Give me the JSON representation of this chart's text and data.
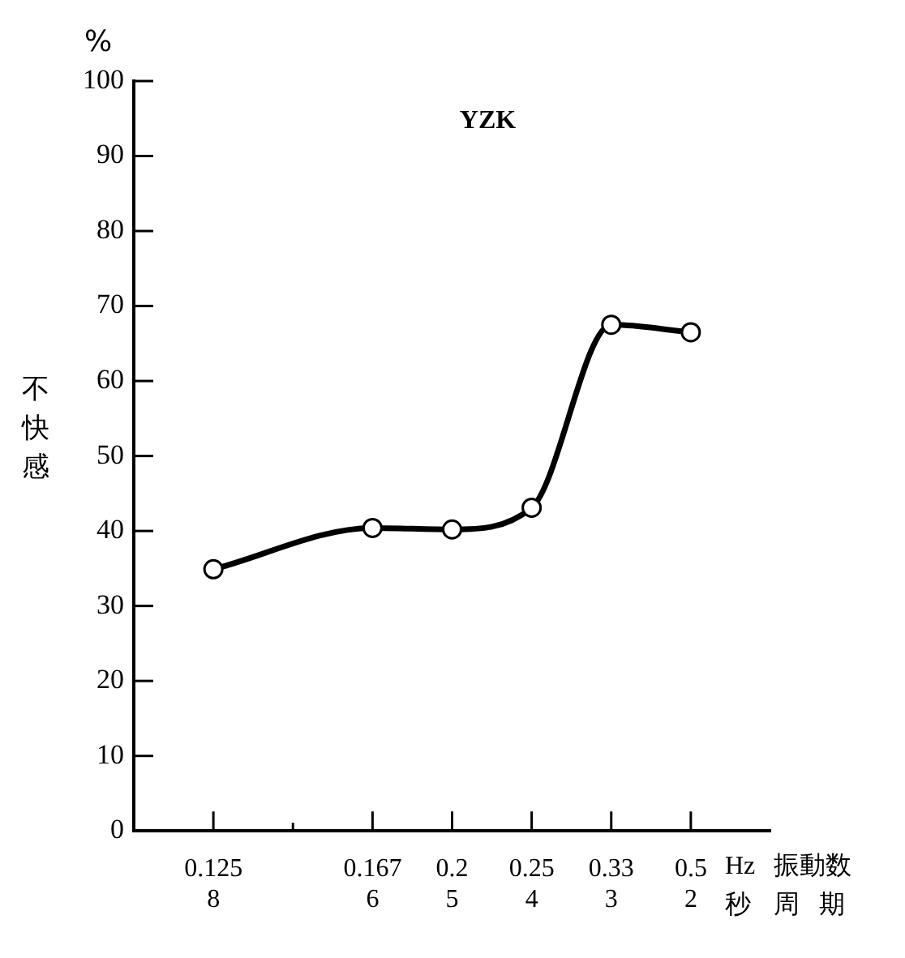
{
  "chart_data": {
    "type": "line",
    "title": "YZK",
    "xlabel": "振動数",
    "ylabel": "不快感",
    "annotations": [
      "%",
      "Hz",
      "秒",
      "周期"
    ],
    "categories": [
      "0.125\n8",
      null,
      "0.167\n6",
      "0.2\n5",
      "0.25\n4",
      "0.33\n3",
      "0.5\n2"
    ],
    "series": [
      {
        "color": "#000000",
        "values": [
          34.9,
          null,
          40.4,
          40.2,
          43.1,
          67.5,
          66.5
        ]
      }
    ],
    "ylim": [
      0,
      100
    ],
    "yticks": [
      0,
      10,
      20,
      30,
      40,
      50,
      60,
      70,
      80,
      90,
      100
    ],
    "grid": false,
    "legend": false,
    "marker": "circle",
    "line_style": "solid"
  }
}
